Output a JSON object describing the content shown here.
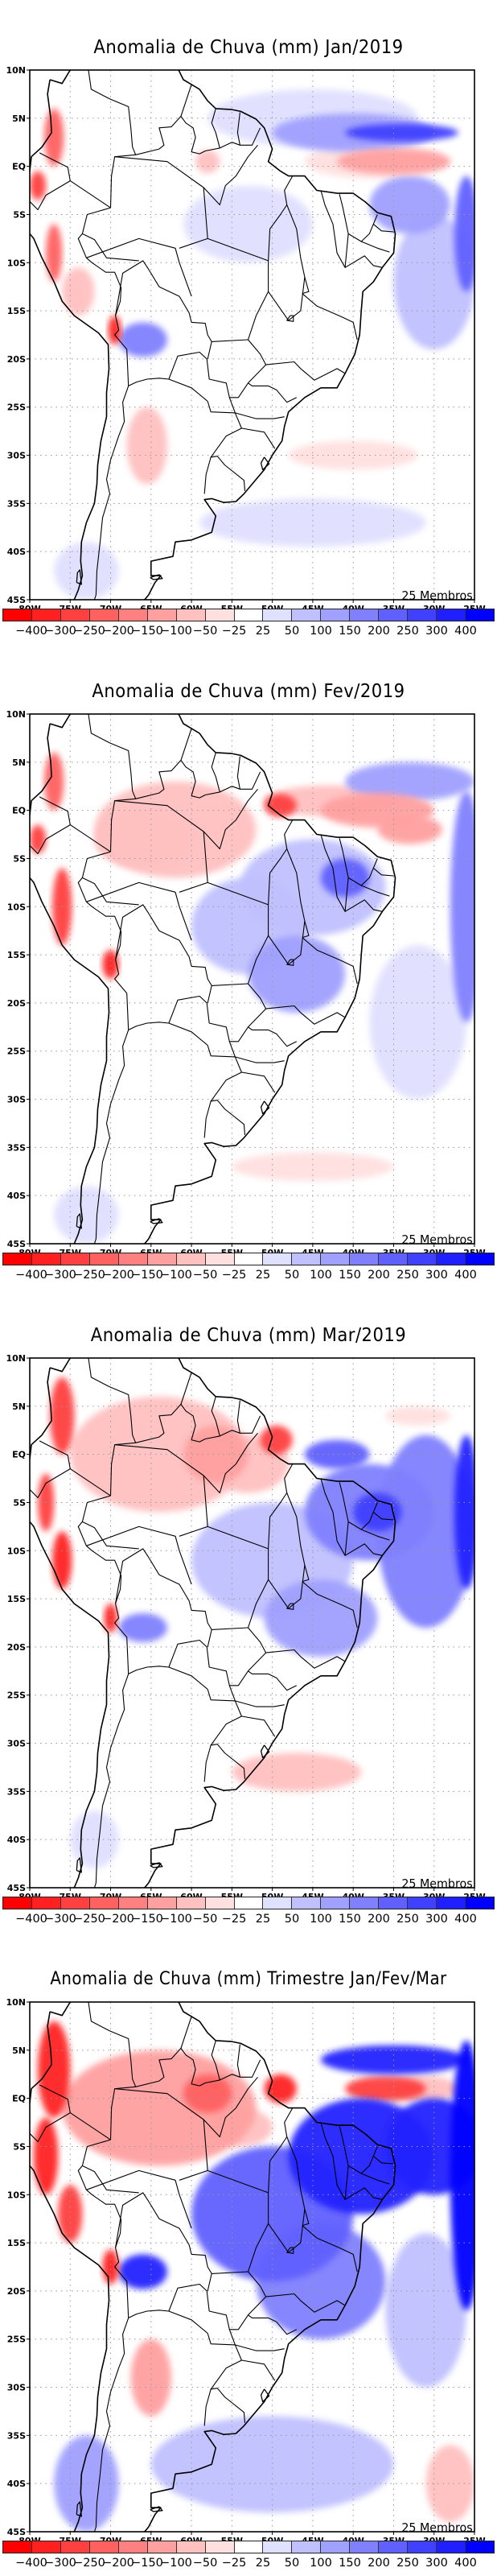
{
  "figure": {
    "members_label": "25 Membros"
  },
  "axes": {
    "lon_range": [
      -80,
      -25
    ],
    "lat_range": [
      -45,
      10
    ],
    "x_ticks": [
      {
        "value": -80,
        "label": "80W"
      },
      {
        "value": -75,
        "label": "75W"
      },
      {
        "value": -70,
        "label": "70W"
      },
      {
        "value": -65,
        "label": "65W"
      },
      {
        "value": -60,
        "label": "60W"
      },
      {
        "value": -55,
        "label": "55W"
      },
      {
        "value": -50,
        "label": "50W"
      },
      {
        "value": -45,
        "label": "45W"
      },
      {
        "value": -40,
        "label": "40W"
      },
      {
        "value": -35,
        "label": "35W"
      },
      {
        "value": -30,
        "label": "30W"
      },
      {
        "value": -25,
        "label": "25W"
      }
    ],
    "y_ticks": [
      {
        "value": 10,
        "label": "10N"
      },
      {
        "value": 5,
        "label": "5N"
      },
      {
        "value": 0,
        "label": "EQ"
      },
      {
        "value": -5,
        "label": "5S"
      },
      {
        "value": -10,
        "label": "10S"
      },
      {
        "value": -15,
        "label": "15S"
      },
      {
        "value": -20,
        "label": "20S"
      },
      {
        "value": -25,
        "label": "25S"
      },
      {
        "value": -30,
        "label": "30S"
      },
      {
        "value": -35,
        "label": "35S"
      },
      {
        "value": -40,
        "label": "40S"
      },
      {
        "value": -45,
        "label": "45S"
      }
    ],
    "grid": "dotted"
  },
  "colorbar": {
    "labels": [
      "-400",
      "-300",
      "-250",
      "-200",
      "-150",
      "-100",
      "-50",
      "-25",
      "25",
      "50",
      "100",
      "150",
      "200",
      "250",
      "300",
      "400"
    ],
    "colors": [
      "#ff0000",
      "#ff2020",
      "#ff4040",
      "#ff6060",
      "#ff8080",
      "#ffa0a0",
      "#ffc0c0",
      "#ffe0e0",
      "#ffffff",
      "#e0e0ff",
      "#c0c0ff",
      "#a0a0ff",
      "#8080ff",
      "#6060ff",
      "#4040ff",
      "#2020ff",
      "#0000ff"
    ],
    "units": "mm"
  },
  "chart_data": [
    {
      "type": "heatmap",
      "title": "Anomalia de Chuva (mm) Jan/2019",
      "xlabel": "",
      "ylabel": "",
      "xlim": [
        -80,
        -25
      ],
      "ylim": [
        -45,
        10
      ],
      "anomalies": [
        {
          "lon": -34,
          "lat": 3.5,
          "rx": 7,
          "ry": 0.9,
          "value": 260
        },
        {
          "lon": -40,
          "lat": 3.5,
          "rx": 10,
          "ry": 2,
          "value": 120
        },
        {
          "lon": -45,
          "lat": 5,
          "rx": 13,
          "ry": 3,
          "value": 40
        },
        {
          "lon": -35,
          "lat": 0.5,
          "rx": 7,
          "ry": 1.3,
          "value": -120
        },
        {
          "lon": -37,
          "lat": 0.5,
          "rx": 9,
          "ry": 1.8,
          "value": -40
        },
        {
          "lon": -33,
          "lat": -4,
          "rx": 5,
          "ry": 3,
          "value": 100
        },
        {
          "lon": -26,
          "lat": -7,
          "rx": 1.5,
          "ry": 6,
          "value": 200
        },
        {
          "lon": -30,
          "lat": -12,
          "rx": 5,
          "ry": 7,
          "value": 60
        },
        {
          "lon": -53,
          "lat": -6,
          "rx": 8,
          "ry": 4,
          "value": 40
        },
        {
          "lon": -58,
          "lat": 0.5,
          "rx": 1.5,
          "ry": 1.2,
          "value": -80
        },
        {
          "lon": -77,
          "lat": 3,
          "rx": 1.2,
          "ry": 3,
          "value": -250
        },
        {
          "lon": -79,
          "lat": -2,
          "rx": 1,
          "ry": 1.5,
          "value": -300
        },
        {
          "lon": -77,
          "lat": -9,
          "rx": 1,
          "ry": 3,
          "value": -250
        },
        {
          "lon": -74,
          "lat": -13,
          "rx": 2,
          "ry": 2.5,
          "value": -80
        },
        {
          "lon": -69.5,
          "lat": -17,
          "rx": 0.8,
          "ry": 1.5,
          "value": -400
        },
        {
          "lon": -66,
          "lat": -18,
          "rx": 3,
          "ry": 1.8,
          "value": 150
        },
        {
          "lon": -65.5,
          "lat": -29,
          "rx": 2.5,
          "ry": 4,
          "value": -100
        },
        {
          "lon": -40,
          "lat": -30,
          "rx": 8,
          "ry": 1.5,
          "value": -50
        },
        {
          "lon": -45,
          "lat": -37,
          "rx": 14,
          "ry": 2.5,
          "value": 40
        },
        {
          "lon": -73,
          "lat": -42,
          "rx": 4,
          "ry": 3,
          "value": 40
        }
      ]
    },
    {
      "type": "heatmap",
      "title": "Anomalia de Chuva (mm) Fev/2019",
      "xlabel": "",
      "ylabel": "",
      "xlim": [
        -80,
        -25
      ],
      "ylim": [
        -45,
        10
      ],
      "anomalies": [
        {
          "lon": -62,
          "lat": -2,
          "rx": 10,
          "ry": 5,
          "value": -60
        },
        {
          "lon": -66,
          "lat": -3,
          "rx": 6,
          "ry": 3,
          "value": -100
        },
        {
          "lon": -49,
          "lat": 0.5,
          "rx": 2,
          "ry": 1.2,
          "value": -300
        },
        {
          "lon": -43,
          "lat": 1,
          "rx": 8,
          "ry": 1.6,
          "value": -80
        },
        {
          "lon": -37,
          "lat": 0,
          "rx": 7,
          "ry": 1.8,
          "value": -150
        },
        {
          "lon": -33,
          "lat": -2,
          "rx": 4,
          "ry": 1.5,
          "value": -120
        },
        {
          "lon": -45,
          "lat": -8,
          "rx": 9,
          "ry": 5,
          "value": 80
        },
        {
          "lon": -41,
          "lat": -7,
          "rx": 3,
          "ry": 2,
          "value": 200
        },
        {
          "lon": -53,
          "lat": -12,
          "rx": 7,
          "ry": 5,
          "value": 60
        },
        {
          "lon": -47,
          "lat": -17,
          "rx": 6,
          "ry": 4,
          "value": 100
        },
        {
          "lon": -33,
          "lat": 3,
          "rx": 8,
          "ry": 2,
          "value": 100
        },
        {
          "lon": -26,
          "lat": -10,
          "rx": 2,
          "ry": 12,
          "value": 150
        },
        {
          "lon": -32,
          "lat": -22,
          "rx": 6,
          "ry": 8,
          "value": 40
        },
        {
          "lon": -77,
          "lat": 3,
          "rx": 1.2,
          "ry": 3,
          "value": -250
        },
        {
          "lon": -79,
          "lat": -3,
          "rx": 1,
          "ry": 1.5,
          "value": -300
        },
        {
          "lon": -76,
          "lat": -10,
          "rx": 1.2,
          "ry": 4,
          "value": -300
        },
        {
          "lon": -70,
          "lat": -16,
          "rx": 1,
          "ry": 1.5,
          "value": -400
        },
        {
          "lon": -45,
          "lat": -37,
          "rx": 10,
          "ry": 1.5,
          "value": -50
        },
        {
          "lon": -73,
          "lat": -42,
          "rx": 4,
          "ry": 3,
          "value": 30
        }
      ]
    },
    {
      "type": "heatmap",
      "title": "Anomalia de Chuva (mm) Mar/2019",
      "xlabel": "",
      "ylabel": "",
      "xlim": [
        -80,
        -25
      ],
      "ylim": [
        -45,
        10
      ],
      "anomalies": [
        {
          "lon": -64,
          "lat": 0,
          "rx": 11,
          "ry": 6,
          "value": -80
        },
        {
          "lon": -57,
          "lat": 0,
          "rx": 4,
          "ry": 3,
          "value": -120
        },
        {
          "lon": -49.5,
          "lat": 1.5,
          "rx": 2,
          "ry": 1.5,
          "value": -300
        },
        {
          "lon": -53,
          "lat": -1,
          "rx": 5,
          "ry": 3,
          "value": -60
        },
        {
          "lon": -38,
          "lat": -6,
          "rx": 8,
          "ry": 5,
          "value": 150
        },
        {
          "lon": -37,
          "lat": -6,
          "rx": 3,
          "ry": 2,
          "value": 250
        },
        {
          "lon": -42,
          "lat": 0,
          "rx": 4,
          "ry": 1.5,
          "value": 220
        },
        {
          "lon": -50,
          "lat": -11,
          "rx": 10,
          "ry": 6,
          "value": 80
        },
        {
          "lon": -44,
          "lat": -17,
          "rx": 7,
          "ry": 4,
          "value": 100
        },
        {
          "lon": -31,
          "lat": -8,
          "rx": 6,
          "ry": 10,
          "value": 150
        },
        {
          "lon": -26,
          "lat": -6,
          "rx": 1.5,
          "ry": 8,
          "value": 300
        },
        {
          "lon": -32,
          "lat": 4,
          "rx": 4,
          "ry": 1,
          "value": -50
        },
        {
          "lon": -76,
          "lat": 4,
          "rx": 1.5,
          "ry": 4,
          "value": -300
        },
        {
          "lon": -78,
          "lat": -5,
          "rx": 1,
          "ry": 3,
          "value": -300
        },
        {
          "lon": -76,
          "lat": -11,
          "rx": 1.2,
          "ry": 3,
          "value": -350
        },
        {
          "lon": -70,
          "lat": -17,
          "rx": 0.8,
          "ry": 1.5,
          "value": -400
        },
        {
          "lon": -66,
          "lat": -18,
          "rx": 3,
          "ry": 1.5,
          "value": 150
        },
        {
          "lon": -47,
          "lat": -33,
          "rx": 8,
          "ry": 2,
          "value": -60
        },
        {
          "lon": -72,
          "lat": -40,
          "rx": 3,
          "ry": 3,
          "value": 30
        }
      ]
    },
    {
      "type": "heatmap",
      "title": "Anomalia de Chuva (mm) Trimestre Jan/Fev/Mar",
      "xlabel": "",
      "ylabel": "",
      "xlim": [
        -80,
        -25
      ],
      "ylim": [
        -45,
        10
      ],
      "anomalies": [
        {
          "lon": -64,
          "lat": -1,
          "rx": 12,
          "ry": 6,
          "value": -150
        },
        {
          "lon": -58,
          "lat": 0.5,
          "rx": 3,
          "ry": 2,
          "value": -250
        },
        {
          "lon": -49,
          "lat": 1,
          "rx": 2,
          "ry": 1.5,
          "value": -400
        },
        {
          "lon": -54,
          "lat": -3,
          "rx": 4,
          "ry": 2,
          "value": -100
        },
        {
          "lon": -36,
          "lat": 1,
          "rx": 5,
          "ry": 1.3,
          "value": -300
        },
        {
          "lon": -31,
          "lat": 1,
          "rx": 4,
          "ry": 1.3,
          "value": -100
        },
        {
          "lon": -35,
          "lat": 4,
          "rx": 9,
          "ry": 1.5,
          "value": 300
        },
        {
          "lon": -39,
          "lat": -6,
          "rx": 9,
          "ry": 6,
          "value": 300
        },
        {
          "lon": -30,
          "lat": -5,
          "rx": 6,
          "ry": 5,
          "value": 350
        },
        {
          "lon": -50,
          "lat": -12,
          "rx": 10,
          "ry": 7,
          "value": 200
        },
        {
          "lon": -44,
          "lat": -19,
          "rx": 8,
          "ry": 6,
          "value": 150
        },
        {
          "lon": -31,
          "lat": -22,
          "rx": 5,
          "ry": 8,
          "value": 80
        },
        {
          "lon": -26,
          "lat": -8,
          "rx": 2,
          "ry": 14,
          "value": 400
        },
        {
          "lon": -66,
          "lat": -18,
          "rx": 3,
          "ry": 1.8,
          "value": 300
        },
        {
          "lon": -77,
          "lat": 3,
          "rx": 2,
          "ry": 5,
          "value": -350
        },
        {
          "lon": -78,
          "lat": -6,
          "rx": 1.5,
          "ry": 4,
          "value": -350
        },
        {
          "lon": -75,
          "lat": -12,
          "rx": 1.5,
          "ry": 3,
          "value": -300
        },
        {
          "lon": -70,
          "lat": -17.5,
          "rx": 1,
          "ry": 1.8,
          "value": -400
        },
        {
          "lon": -65,
          "lat": -29,
          "rx": 2.5,
          "ry": 4,
          "value": -150
        },
        {
          "lon": -28,
          "lat": -40,
          "rx": 3,
          "ry": 4,
          "value": -60
        },
        {
          "lon": -50,
          "lat": -38,
          "rx": 15,
          "ry": 5,
          "value": 50
        },
        {
          "lon": -73,
          "lat": -40,
          "rx": 4,
          "ry": 5,
          "value": 100
        }
      ]
    }
  ],
  "panels": [
    {
      "id": "jan",
      "title": "Anomalia de Chuva (mm) Jan/2019"
    },
    {
      "id": "fev",
      "title": "Anomalia de Chuva (mm) Fev/2019"
    },
    {
      "id": "mar",
      "title": "Anomalia de Chuva (mm) Mar/2019"
    },
    {
      "id": "trimestre",
      "title": "Anomalia de Chuva (mm) Trimestre Jan/Fev/Mar"
    }
  ]
}
